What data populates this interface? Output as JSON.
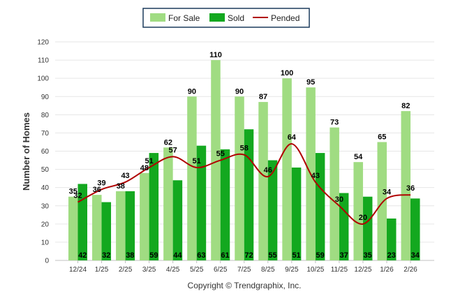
{
  "chart_data": {
    "type": "bar",
    "title": "",
    "xlabel": "",
    "ylabel": "Number of Homes",
    "ylim": [
      0,
      120
    ],
    "yticks": [
      0,
      10,
      20,
      30,
      40,
      50,
      60,
      70,
      80,
      90,
      100,
      110,
      120
    ],
    "categories": [
      "12/24",
      "1/25",
      "2/25",
      "3/25",
      "4/25",
      "5/25",
      "6/25",
      "7/25",
      "8/25",
      "9/25",
      "10/25",
      "11/25",
      "12/25",
      "1/26",
      "2/26"
    ],
    "series": [
      {
        "name": "For Sale",
        "type": "bar",
        "color": "#a0dc82",
        "values": [
          35,
          36,
          38,
          48,
          62,
          90,
          110,
          90,
          87,
          100,
          95,
          73,
          54,
          65,
          82
        ]
      },
      {
        "name": "Sold",
        "type": "bar",
        "color": "#13a81f",
        "values": [
          42,
          32,
          38,
          59,
          44,
          63,
          61,
          72,
          55,
          51,
          59,
          37,
          35,
          23,
          34
        ]
      },
      {
        "name": "Pended",
        "type": "line",
        "color": "#b00000",
        "values": [
          32,
          39,
          43,
          51,
          57,
          51,
          55,
          58,
          46,
          64,
          43,
          30,
          20,
          34,
          36
        ]
      }
    ],
    "legend": "top-center"
  },
  "legend": {
    "items": [
      {
        "label": "For Sale",
        "color": "#a0dc82"
      },
      {
        "label": "Sold",
        "color": "#13a81f"
      },
      {
        "label": "Pended",
        "color": "#b00000"
      }
    ]
  },
  "copyright": "Copyright © Trendgraphix, Inc."
}
